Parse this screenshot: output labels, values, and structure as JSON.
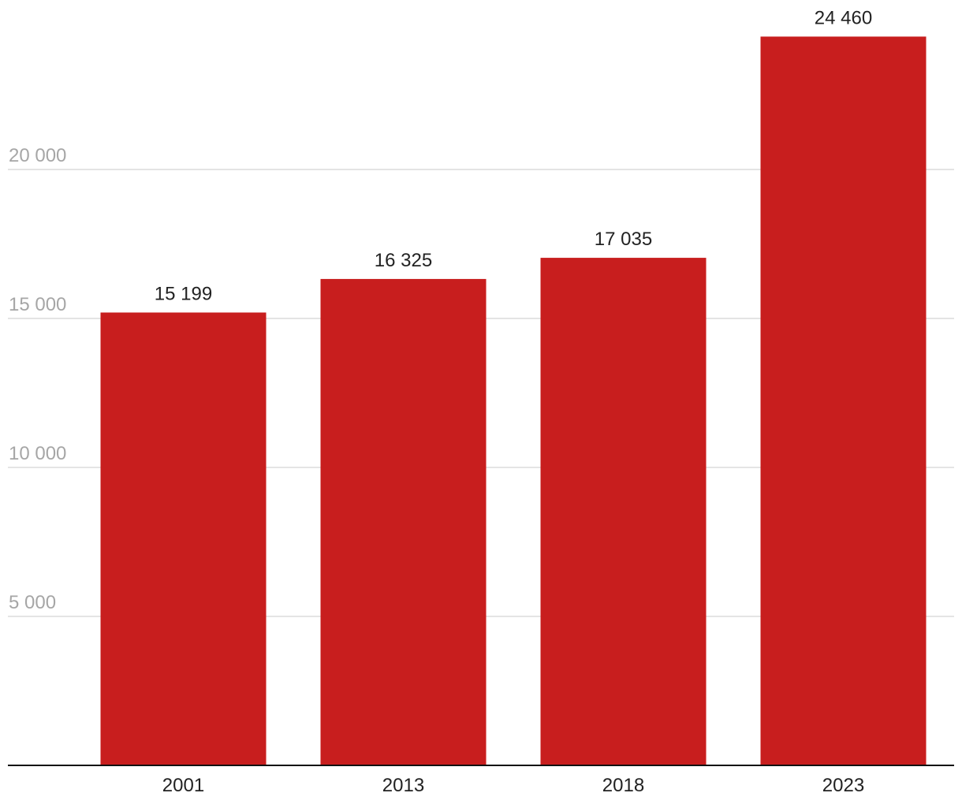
{
  "chart_data": {
    "type": "bar",
    "title": "",
    "xlabel": "",
    "ylabel": "",
    "categories": [
      "2001",
      "2013",
      "2018",
      "2023"
    ],
    "values": [
      15199,
      16325,
      17035,
      24460
    ],
    "data_labels": [
      "15 199",
      "16 325",
      "17 035",
      "24 460"
    ],
    "ylim": [
      0,
      25000
    ],
    "y_ticks": [
      5000,
      10000,
      15000,
      20000
    ],
    "y_tick_labels": [
      "5 000",
      "10 000",
      "15 000",
      "20 000"
    ],
    "grid": true,
    "legend": "none",
    "colors": {
      "bar": "#c81e1e",
      "grid": "#dcdcdc",
      "y_tick_text": "#a6a6a6",
      "x_tick_text": "#222222",
      "data_label_text": "#222222",
      "baseline": "#111111"
    }
  }
}
